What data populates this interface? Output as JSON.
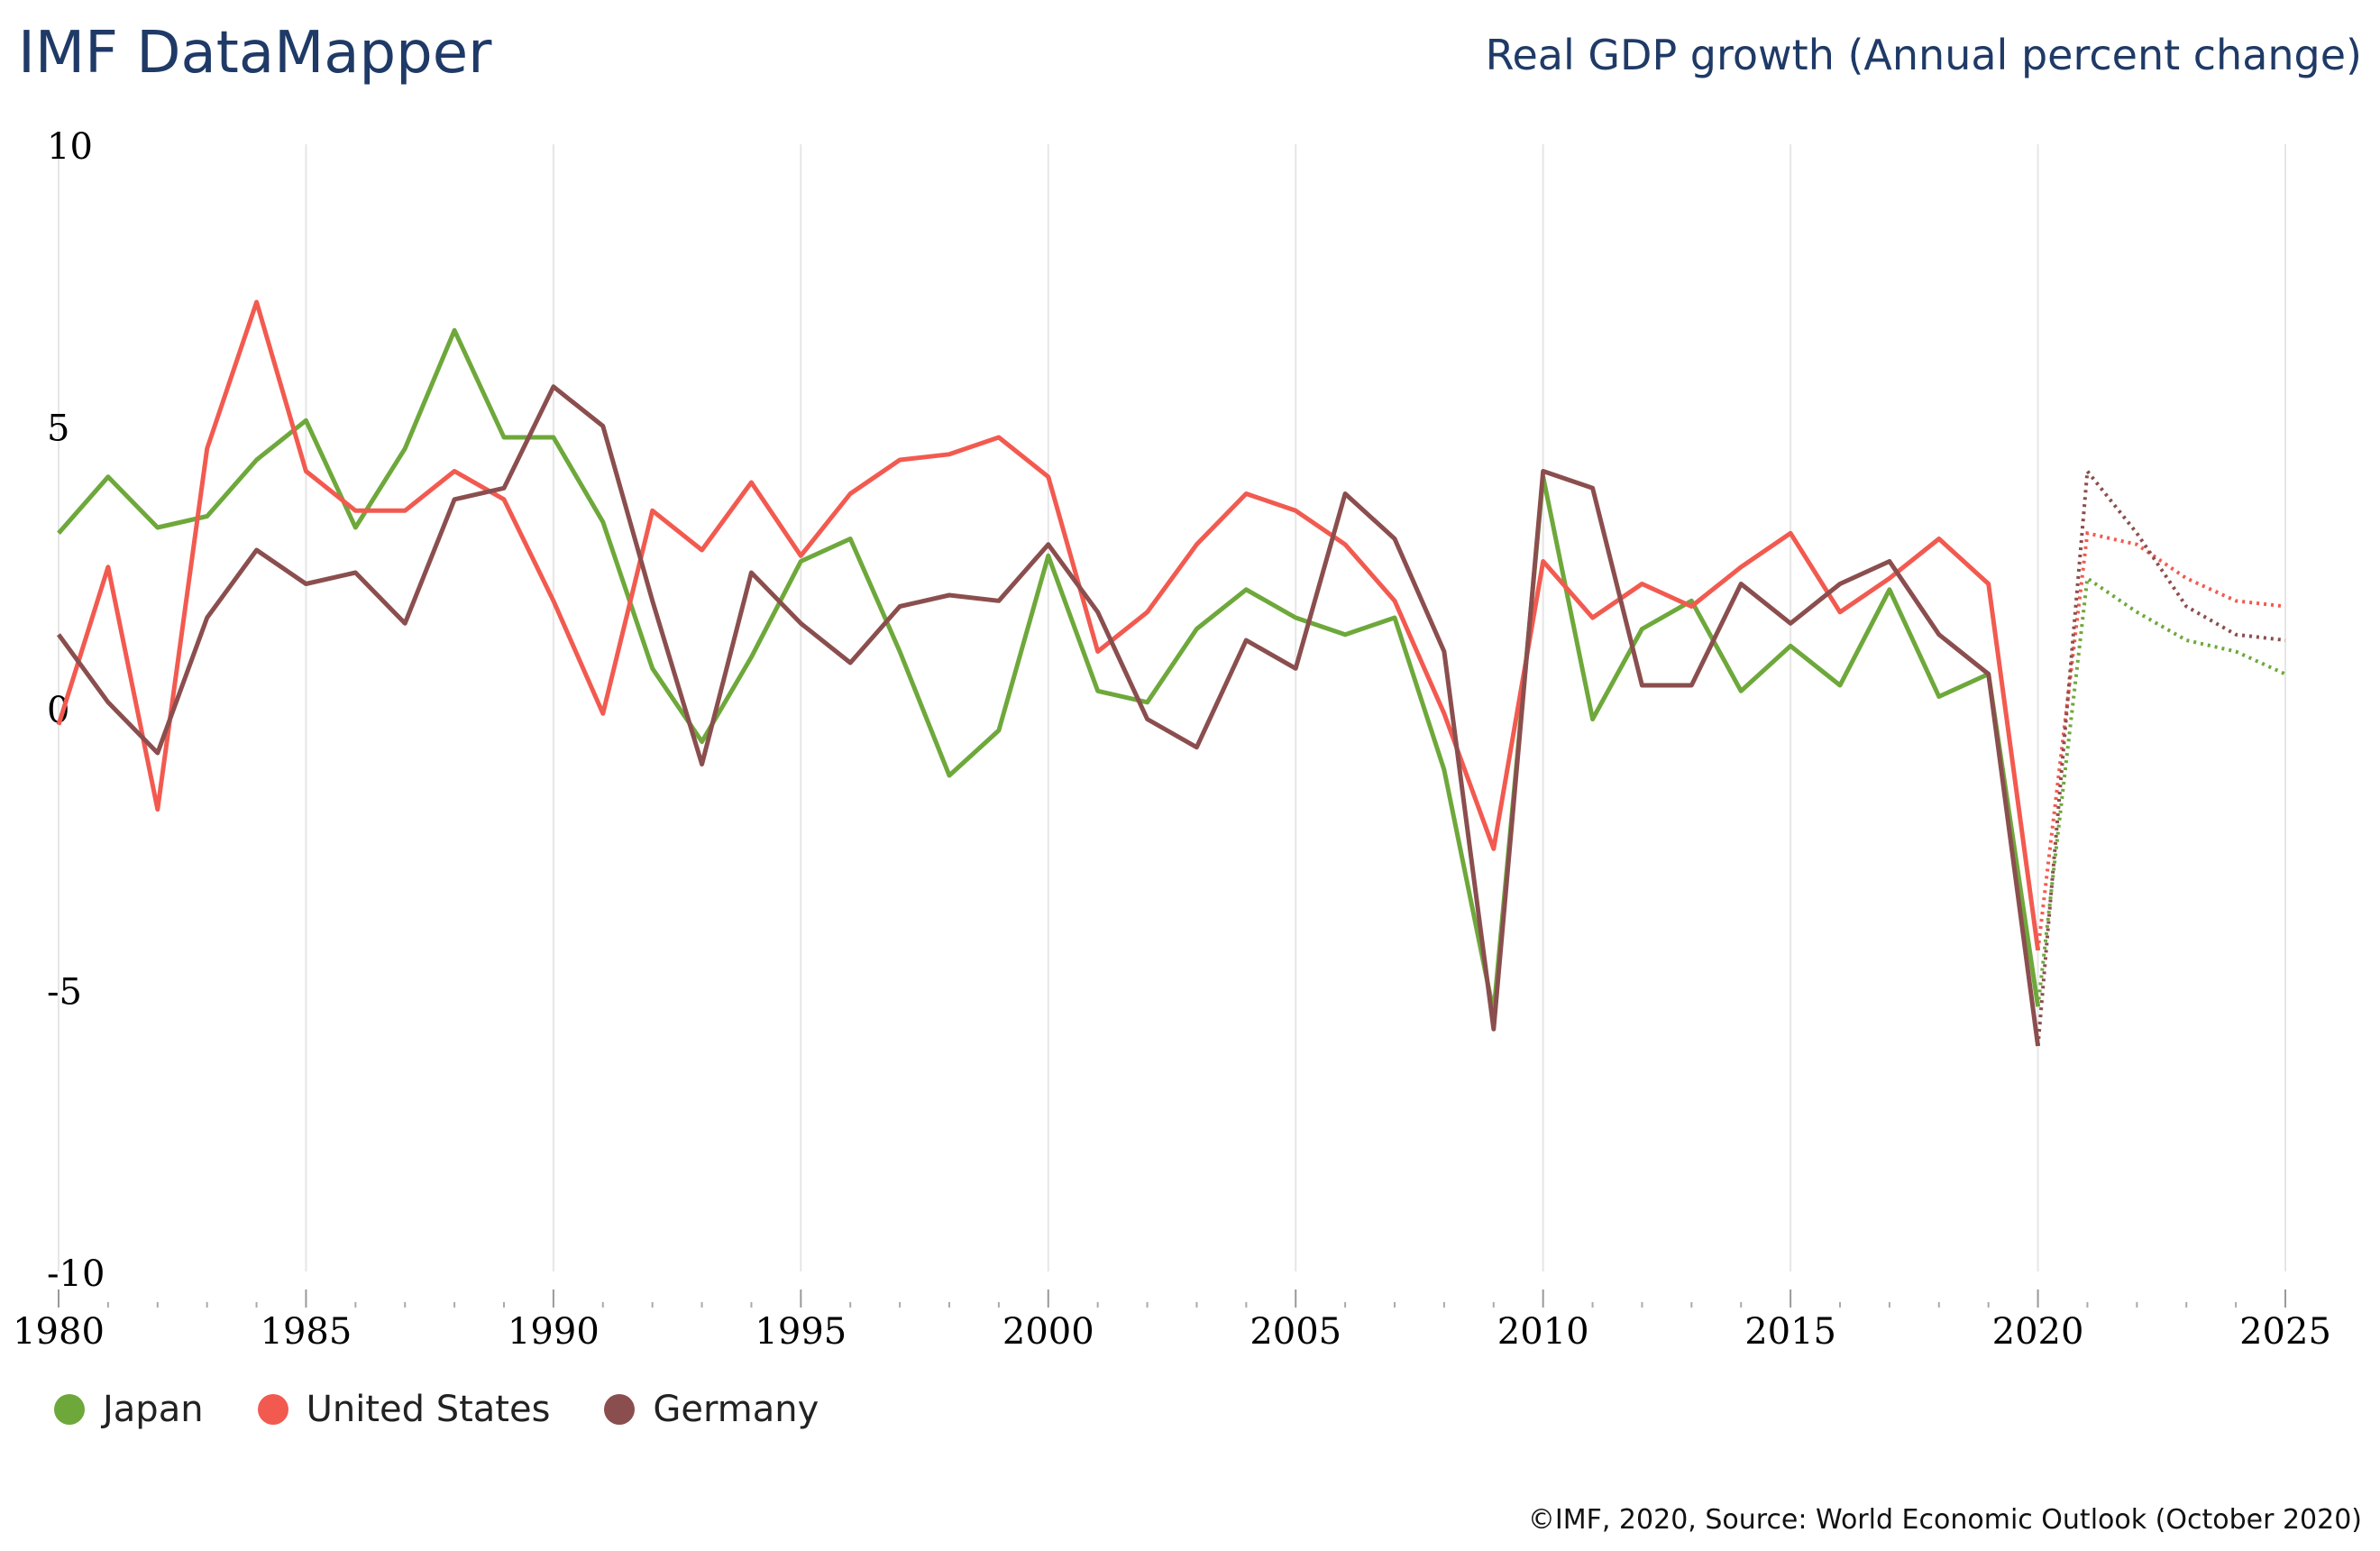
{
  "header": {
    "brand": "IMF DataMapper",
    "subtitle": "Real GDP growth (Annual percent change)"
  },
  "footer": {
    "credit": "©IMF, 2020, Source: World Economic Outlook (October 2020)"
  },
  "chart_data": {
    "type": "line",
    "title": "Real GDP growth (Annual percent change)",
    "xlabel": "",
    "ylabel": "",
    "xlim": [
      1980,
      2025
    ],
    "ylim": [
      -10,
      10
    ],
    "y_ticks": [
      10,
      5,
      0,
      -5,
      -10
    ],
    "y_tick_labels": [
      "10",
      "5",
      "0",
      "-5",
      "-10"
    ],
    "x_ticks": [
      1980,
      1985,
      1990,
      1995,
      2000,
      2005,
      2010,
      2015,
      2020,
      2025
    ],
    "x_tick_labels": [
      "1980",
      "1985",
      "1990",
      "1995",
      "2000",
      "2005",
      "2010",
      "2015",
      "2020",
      "2025"
    ],
    "grid": "vertical",
    "forecast_start": 2020,
    "legend_position": "bottom-left",
    "series": [
      {
        "name": "Japan",
        "color": "#6ea83b",
        "x": [
          1980,
          1981,
          1982,
          1983,
          1984,
          1985,
          1986,
          1987,
          1988,
          1989,
          1990,
          1991,
          1992,
          1993,
          1994,
          1995,
          1996,
          1997,
          1998,
          1999,
          2000,
          2001,
          2002,
          2003,
          2004,
          2005,
          2006,
          2007,
          2008,
          2009,
          2010,
          2011,
          2012,
          2013,
          2014,
          2015,
          2016,
          2017,
          2018,
          2019,
          2020,
          2021,
          2022,
          2023,
          2024,
          2025
        ],
        "values": [
          3.1,
          4.1,
          3.2,
          3.4,
          4.4,
          5.1,
          3.2,
          4.6,
          6.7,
          4.8,
          4.8,
          3.3,
          0.7,
          -0.6,
          0.9,
          2.6,
          3.0,
          1.0,
          -1.2,
          -0.4,
          2.7,
          0.3,
          0.1,
          1.4,
          2.1,
          1.6,
          1.3,
          1.6,
          -1.1,
          -5.4,
          4.1,
          -0.2,
          1.4,
          1.9,
          0.3,
          1.1,
          0.4,
          2.1,
          0.2,
          0.6,
          -5.3,
          2.3,
          1.7,
          1.2,
          1.0,
          0.6
        ]
      },
      {
        "name": "United States",
        "color": "#f25a50",
        "x": [
          1980,
          1981,
          1982,
          1983,
          1984,
          1985,
          1986,
          1987,
          1988,
          1989,
          1990,
          1991,
          1992,
          1993,
          1994,
          1995,
          1996,
          1997,
          1998,
          1999,
          2000,
          2001,
          2002,
          2003,
          2004,
          2005,
          2006,
          2007,
          2008,
          2009,
          2010,
          2011,
          2012,
          2013,
          2014,
          2015,
          2016,
          2017,
          2018,
          2019,
          2020,
          2021,
          2022,
          2023,
          2024,
          2025
        ],
        "values": [
          -0.3,
          2.5,
          -1.8,
          4.6,
          7.2,
          4.2,
          3.5,
          3.5,
          4.2,
          3.7,
          1.9,
          -0.1,
          3.5,
          2.8,
          4.0,
          2.7,
          3.8,
          4.4,
          4.5,
          4.8,
          4.1,
          1.0,
          1.7,
          2.9,
          3.8,
          3.5,
          2.9,
          1.9,
          -0.1,
          -2.5,
          2.6,
          1.6,
          2.2,
          1.8,
          2.5,
          3.1,
          1.7,
          2.3,
          3.0,
          2.2,
          -4.3,
          3.1,
          2.9,
          2.3,
          1.9,
          1.8
        ]
      },
      {
        "name": "Germany",
        "color": "#8b4e4e",
        "x": [
          1980,
          1981,
          1982,
          1983,
          1984,
          1985,
          1986,
          1987,
          1988,
          1989,
          1990,
          1991,
          1992,
          1993,
          1994,
          1995,
          1996,
          1997,
          1998,
          1999,
          2000,
          2001,
          2002,
          2003,
          2004,
          2005,
          2006,
          2007,
          2008,
          2009,
          2010,
          2011,
          2012,
          2013,
          2014,
          2015,
          2016,
          2017,
          2018,
          2019,
          2020,
          2021,
          2022,
          2023,
          2024,
          2025
        ],
        "values": [
          1.3,
          0.1,
          -0.8,
          1.6,
          2.8,
          2.2,
          2.4,
          1.5,
          3.7,
          3.9,
          5.7,
          5.0,
          1.9,
          -1.0,
          2.4,
          1.5,
          0.8,
          1.8,
          2.0,
          1.9,
          2.9,
          1.7,
          -0.2,
          -0.7,
          1.2,
          0.7,
          3.8,
          3.0,
          1.0,
          -5.7,
          4.2,
          3.9,
          0.4,
          0.4,
          2.2,
          1.5,
          2.2,
          2.6,
          1.3,
          0.6,
          -6.0,
          4.2,
          3.1,
          1.8,
          1.3,
          1.2
        ]
      }
    ]
  }
}
